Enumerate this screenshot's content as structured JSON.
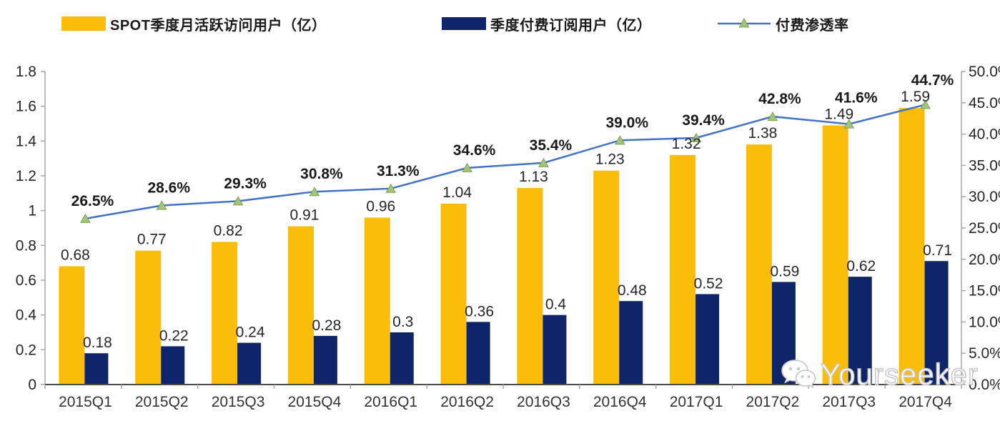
{
  "legend": {
    "items": [
      {
        "label": "SPOT季度月活跃访问用户（亿）",
        "type": "bar",
        "color": "#FCBD0A"
      },
      {
        "label": "季度付费订阅用户（亿）",
        "type": "bar",
        "color": "#0E2569"
      },
      {
        "label": "付费渗透率",
        "type": "line",
        "color": "#4472C4",
        "marker_fill": "#A3C578",
        "marker_stroke": "#7EA152"
      }
    ]
  },
  "watermark": {
    "text": "Yourseeker",
    "icon": "wechat-icon"
  },
  "chart_data": {
    "type": "combo-bar-line",
    "title": "",
    "categories": [
      "2015Q1",
      "2015Q2",
      "2015Q3",
      "2015Q4",
      "2016Q1",
      "2016Q2",
      "2016Q3",
      "2016Q4",
      "2017Q1",
      "2017Q2",
      "2017Q3",
      "2017Q4"
    ],
    "series": [
      {
        "name": "SPOT季度月活跃访问用户（亿）",
        "type": "bar",
        "axis": "left",
        "color": "#FCBD0A",
        "values": [
          0.68,
          0.77,
          0.82,
          0.91,
          0.96,
          1.04,
          1.13,
          1.23,
          1.32,
          1.38,
          1.49,
          1.59
        ],
        "labels": [
          "0.68",
          "0.77",
          "0.82",
          "0.91",
          "0.96",
          "1.04",
          "1.13",
          "1.23",
          "1.32",
          "1.38",
          "1.49",
          "1.59"
        ]
      },
      {
        "name": "季度付费订阅用户（亿）",
        "type": "bar",
        "axis": "left",
        "color": "#0E2569",
        "values": [
          0.18,
          0.22,
          0.24,
          0.28,
          0.3,
          0.36,
          0.4,
          0.48,
          0.52,
          0.59,
          0.62,
          0.71
        ],
        "labels": [
          "0.18",
          "0.22",
          "0.24",
          "0.28",
          "0.3",
          "0.36",
          "0.4",
          "0.48",
          "0.52",
          "0.59",
          "0.62",
          "0.71"
        ]
      },
      {
        "name": "付费渗透率",
        "type": "line",
        "axis": "right",
        "color": "#4472C4",
        "marker": {
          "shape": "triangle",
          "fill": "#A3C578",
          "stroke": "#7EA152"
        },
        "values": [
          26.5,
          28.6,
          29.3,
          30.8,
          31.3,
          34.6,
          35.4,
          39.0,
          39.4,
          42.8,
          41.6,
          44.7
        ],
        "labels": [
          "26.5%",
          "28.6%",
          "29.3%",
          "30.8%",
          "31.3%",
          "34.6%",
          "35.4%",
          "39.0%",
          "39.4%",
          "42.8%",
          "41.6%",
          "44.7%"
        ]
      }
    ],
    "left_axis": {
      "min": 0,
      "max": 1.8,
      "step": 0.2,
      "tick_labels": [
        "0",
        "0.2",
        "0.4",
        "0.6",
        "0.8",
        "1",
        "1.2",
        "1.4",
        "1.6",
        "1.8"
      ]
    },
    "right_axis": {
      "min": 0,
      "max": 50,
      "step": 5,
      "tick_labels": [
        "0.0%",
        "5.0%",
        "10.0%",
        "15.0%",
        "20.0%",
        "25.0%",
        "30.0%",
        "35.0%",
        "40.0%",
        "45.0%",
        "50.0%"
      ]
    },
    "grid": false,
    "legend_position": "top"
  }
}
